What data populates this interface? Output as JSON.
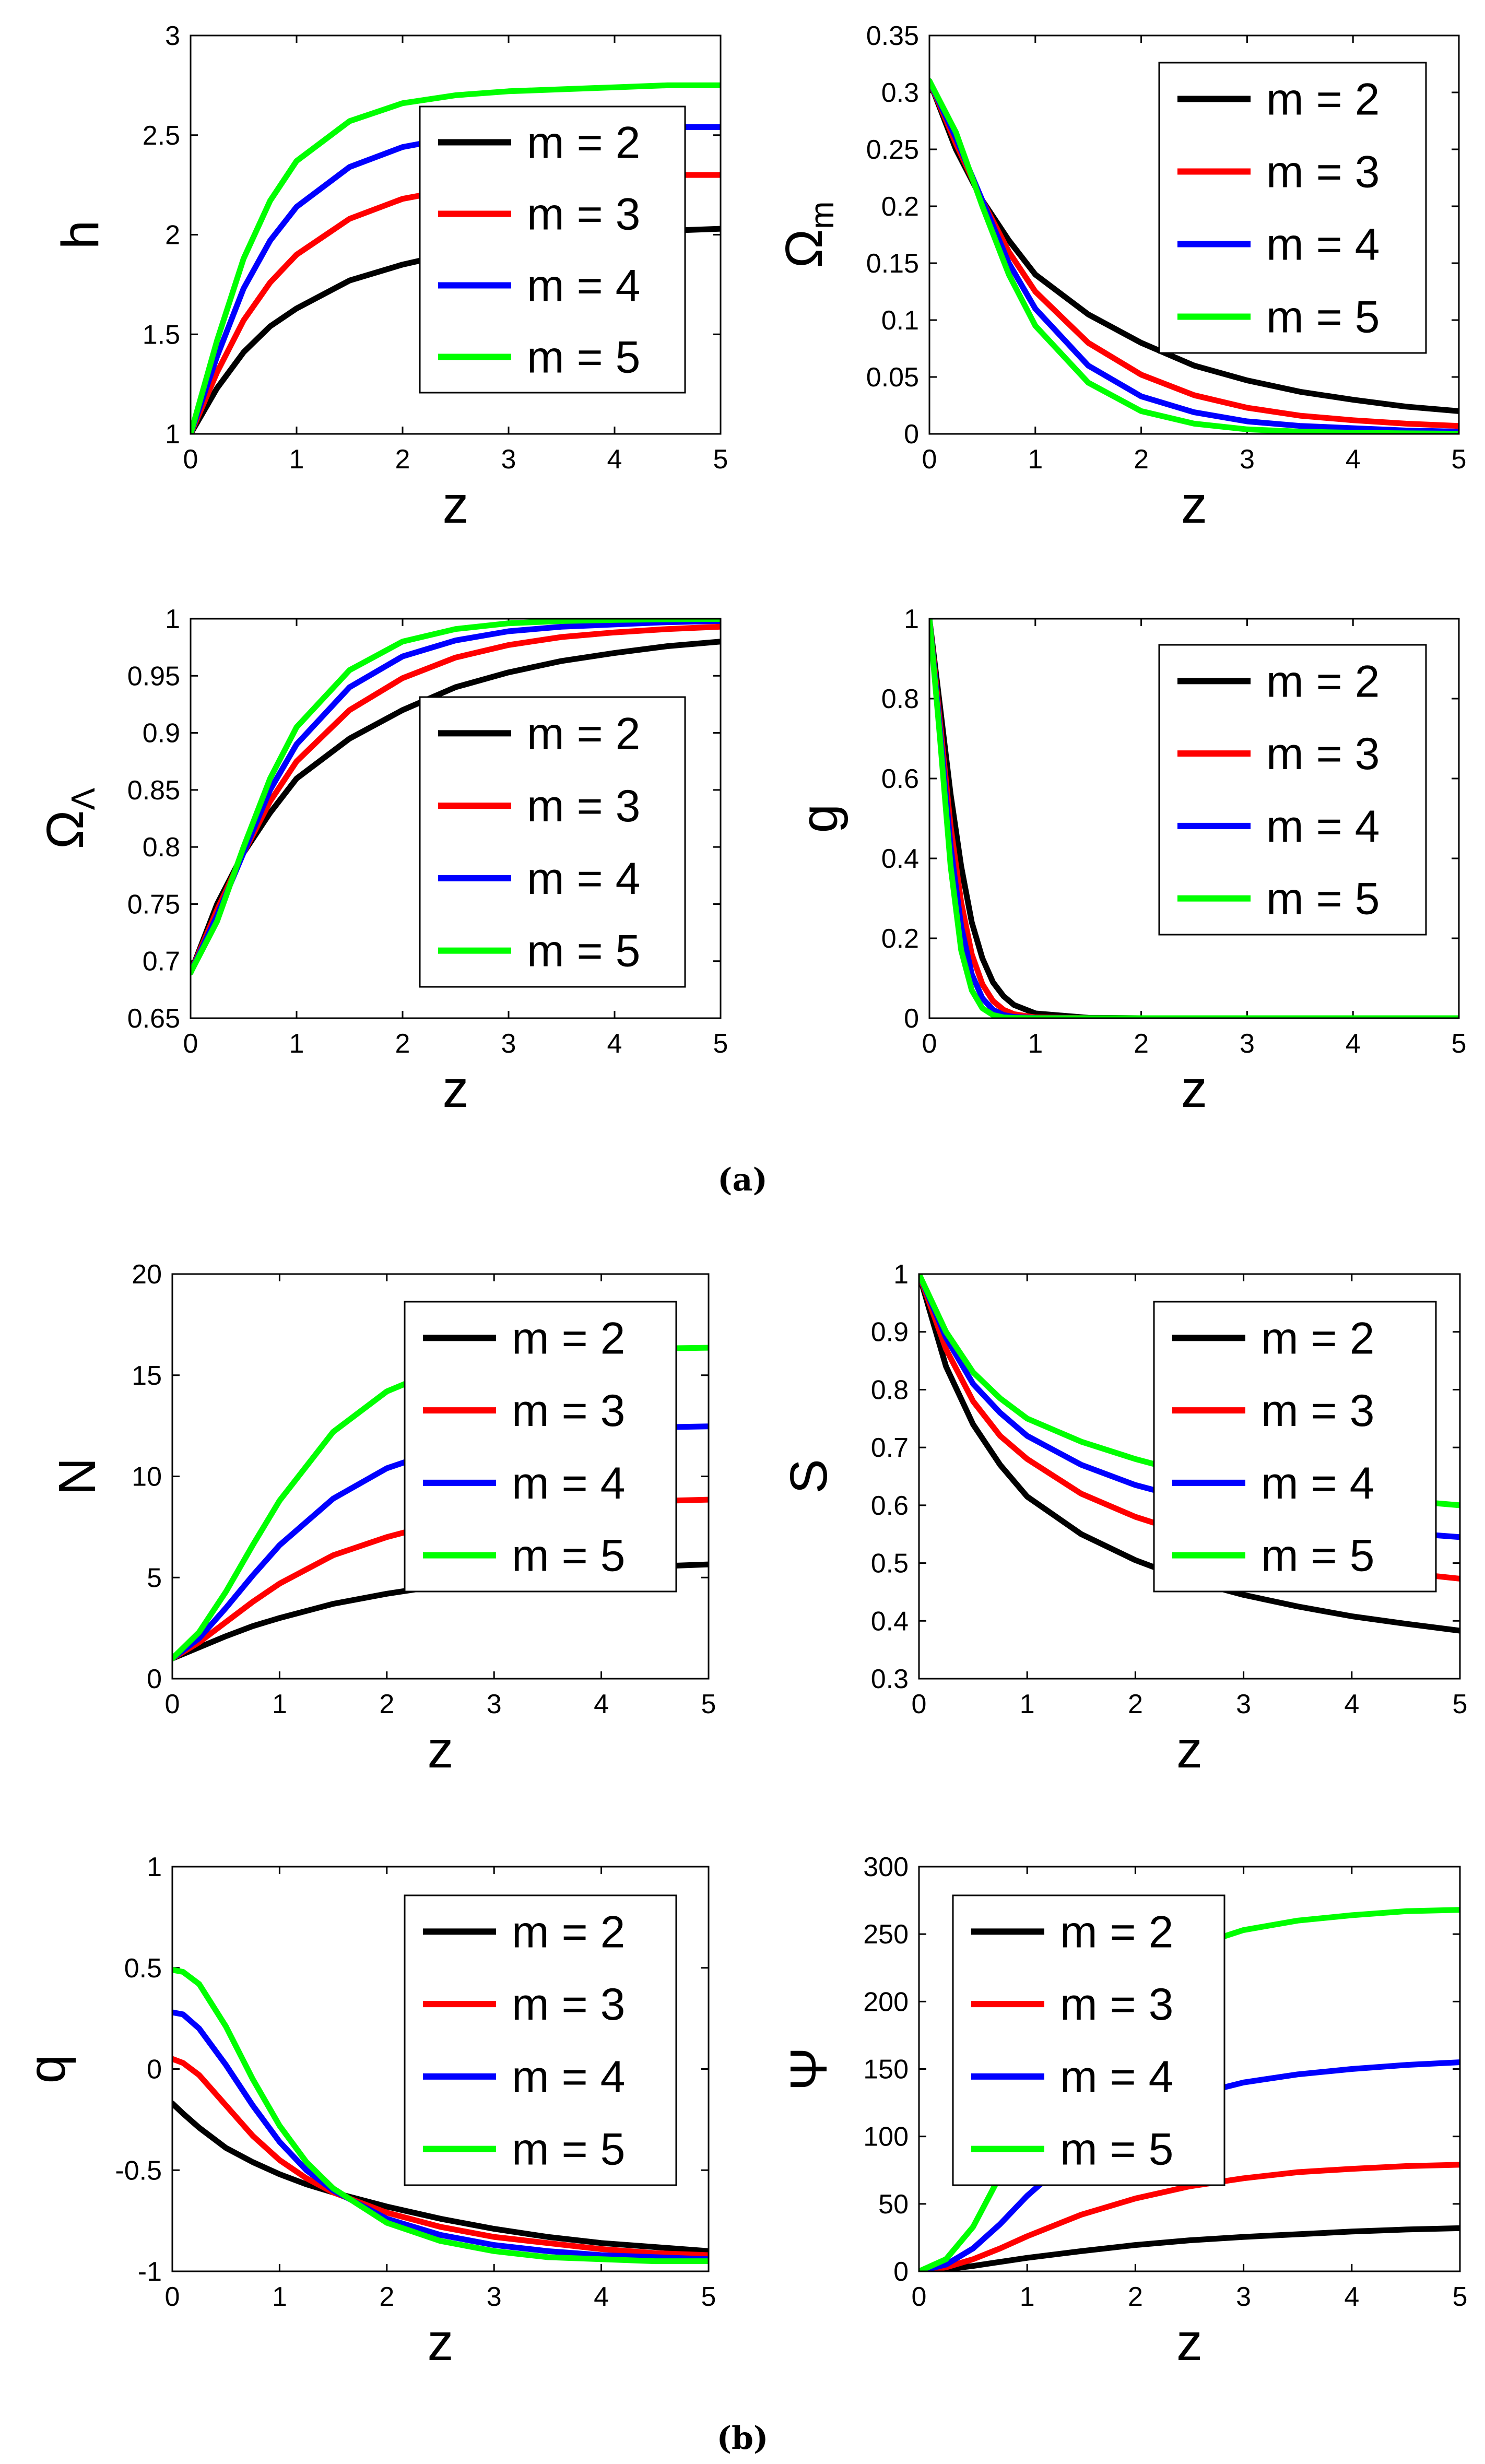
{
  "panel_captions": [
    "(a)",
    "(b)"
  ],
  "colors": {
    "m2": "#000000",
    "m3": "#ff0000",
    "m4": "#0000ff",
    "m5": "#00ff00"
  },
  "chart_data": [
    {
      "id": "h",
      "type": "line",
      "ylabel": "h",
      "ylabel_sub": "",
      "xlabel": "z",
      "xlim": [
        0,
        5
      ],
      "ylim": [
        1,
        3
      ],
      "xticks": [
        "0",
        "1",
        "2",
        "3",
        "4",
        "5"
      ],
      "yticks": [
        "1",
        "1.5",
        "2",
        "2.5",
        "3"
      ],
      "legend": {
        "entries": [
          "m = 2",
          "m = 3",
          "m = 4",
          "m = 5"
        ],
        "position": "center-right"
      },
      "x": [
        0,
        0.25,
        0.5,
        0.75,
        1,
        1.5,
        2,
        2.5,
        3,
        3.5,
        4,
        4.5,
        5
      ],
      "series": [
        {
          "name": "m = 2",
          "color": "#000000",
          "values": [
            1.0,
            1.23,
            1.41,
            1.54,
            1.63,
            1.77,
            1.85,
            1.91,
            1.95,
            1.98,
            2.0,
            2.02,
            2.03
          ]
        },
        {
          "name": "m = 3",
          "color": "#ff0000",
          "values": [
            1.0,
            1.31,
            1.57,
            1.76,
            1.9,
            2.08,
            2.18,
            2.23,
            2.26,
            2.28,
            2.29,
            2.3,
            2.3
          ]
        },
        {
          "name": "m = 4",
          "color": "#0000ff",
          "values": [
            1.0,
            1.39,
            1.73,
            1.97,
            2.14,
            2.34,
            2.44,
            2.49,
            2.52,
            2.53,
            2.54,
            2.54,
            2.54
          ]
        },
        {
          "name": "m = 5",
          "color": "#00ff00",
          "values": [
            1.0,
            1.47,
            1.88,
            2.17,
            2.37,
            2.57,
            2.66,
            2.7,
            2.72,
            2.73,
            2.74,
            2.75,
            2.75
          ]
        }
      ]
    },
    {
      "id": "omega_m",
      "type": "line",
      "ylabel": "Ω",
      "ylabel_sub": "m",
      "xlabel": "z",
      "xlim": [
        0,
        5
      ],
      "ylim": [
        0,
        0.35
      ],
      "xticks": [
        "0",
        "1",
        "2",
        "3",
        "4",
        "5"
      ],
      "yticks": [
        "0",
        "0.05",
        "0.1",
        "0.15",
        "0.2",
        "0.25",
        "0.3",
        "0.35"
      ],
      "legend": {
        "entries": [
          "m = 2",
          "m = 3",
          "m = 4",
          "m = 5"
        ],
        "position": "top-right"
      },
      "x": [
        0,
        0.25,
        0.5,
        0.75,
        1,
        1.5,
        2,
        2.5,
        3,
        3.5,
        4,
        4.5,
        5
      ],
      "series": [
        {
          "name": "m = 2",
          "color": "#000000",
          "values": [
            0.31,
            0.25,
            0.205,
            0.17,
            0.14,
            0.105,
            0.08,
            0.06,
            0.047,
            0.037,
            0.03,
            0.024,
            0.02
          ]
        },
        {
          "name": "m = 3",
          "color": "#ff0000",
          "values": [
            0.31,
            0.255,
            0.205,
            0.16,
            0.125,
            0.08,
            0.052,
            0.034,
            0.023,
            0.016,
            0.012,
            0.009,
            0.007
          ]
        },
        {
          "name": "m = 4",
          "color": "#0000ff",
          "values": [
            0.31,
            0.26,
            0.205,
            0.15,
            0.11,
            0.06,
            0.033,
            0.019,
            0.011,
            0.007,
            0.005,
            0.003,
            0.002
          ]
        },
        {
          "name": "m = 5",
          "color": "#00ff00",
          "values": [
            0.31,
            0.265,
            0.2,
            0.14,
            0.095,
            0.045,
            0.02,
            0.009,
            0.004,
            0.002,
            0.001,
            0.0005,
            0.0002
          ]
        }
      ]
    },
    {
      "id": "omega_lambda",
      "type": "line",
      "ylabel": "Ω",
      "ylabel_sub": "Λ",
      "xlabel": "z",
      "xlim": [
        0,
        5
      ],
      "ylim": [
        0.65,
        1
      ],
      "xticks": [
        "0",
        "1",
        "2",
        "3",
        "4",
        "5"
      ],
      "yticks": [
        "0.65",
        "0.7",
        "0.75",
        "0.8",
        "0.85",
        "0.9",
        "0.95",
        "1"
      ],
      "legend": {
        "entries": [
          "m = 2",
          "m = 3",
          "m = 4",
          "m = 5"
        ],
        "position": "bottom-right"
      },
      "x": [
        0,
        0.25,
        0.5,
        0.75,
        1,
        1.5,
        2,
        2.5,
        3,
        3.5,
        4,
        4.5,
        5
      ],
      "series": [
        {
          "name": "m = 2",
          "color": "#000000",
          "values": [
            0.69,
            0.75,
            0.795,
            0.83,
            0.86,
            0.895,
            0.92,
            0.94,
            0.953,
            0.963,
            0.97,
            0.976,
            0.98
          ]
        },
        {
          "name": "m = 3",
          "color": "#ff0000",
          "values": [
            0.69,
            0.745,
            0.795,
            0.84,
            0.875,
            0.92,
            0.948,
            0.966,
            0.977,
            0.984,
            0.988,
            0.991,
            0.993
          ]
        },
        {
          "name": "m = 4",
          "color": "#0000ff",
          "values": [
            0.69,
            0.74,
            0.795,
            0.85,
            0.89,
            0.94,
            0.967,
            0.981,
            0.989,
            0.993,
            0.995,
            0.997,
            0.998
          ]
        },
        {
          "name": "m = 5",
          "color": "#00ff00",
          "values": [
            0.69,
            0.735,
            0.8,
            0.86,
            0.905,
            0.955,
            0.98,
            0.991,
            0.996,
            0.998,
            0.999,
            0.9995,
            0.9998
          ]
        }
      ]
    },
    {
      "id": "g",
      "type": "line",
      "ylabel": "g",
      "ylabel_sub": "",
      "xlabel": "z",
      "xlim": [
        0,
        5
      ],
      "ylim": [
        0,
        1
      ],
      "xticks": [
        "0",
        "1",
        "2",
        "3",
        "4",
        "5"
      ],
      "yticks": [
        "0",
        "0.2",
        "0.4",
        "0.6",
        "0.8",
        "1"
      ],
      "legend": {
        "entries": [
          "m = 2",
          "m = 3",
          "m = 4",
          "m = 5"
        ],
        "position": "top-right"
      },
      "x": [
        0,
        0.1,
        0.2,
        0.3,
        0.4,
        0.5,
        0.6,
        0.7,
        0.8,
        1.0,
        1.5,
        2,
        3,
        4,
        5
      ],
      "series": [
        {
          "name": "m = 2",
          "color": "#000000",
          "values": [
            1.0,
            0.78,
            0.56,
            0.38,
            0.24,
            0.15,
            0.09,
            0.055,
            0.033,
            0.012,
            0.001,
            0,
            0,
            0,
            0
          ]
        },
        {
          "name": "m = 3",
          "color": "#ff0000",
          "values": [
            1.0,
            0.74,
            0.48,
            0.29,
            0.16,
            0.085,
            0.043,
            0.021,
            0.01,
            0.002,
            0,
            0,
            0,
            0,
            0
          ]
        },
        {
          "name": "m = 4",
          "color": "#0000ff",
          "values": [
            1.0,
            0.72,
            0.43,
            0.23,
            0.11,
            0.05,
            0.021,
            0.008,
            0.003,
            0.0005,
            0,
            0,
            0,
            0,
            0
          ]
        },
        {
          "name": "m = 5",
          "color": "#00ff00",
          "values": [
            1.0,
            0.7,
            0.38,
            0.17,
            0.07,
            0.025,
            0.008,
            0.002,
            0.0005,
            0,
            0,
            0,
            0,
            0,
            0
          ]
        }
      ]
    },
    {
      "id": "N",
      "type": "line",
      "ylabel": "N",
      "ylabel_sub": "",
      "xlabel": "z",
      "xlim": [
        0,
        5
      ],
      "ylim": [
        0,
        20
      ],
      "xticks": [
        "0",
        "1",
        "2",
        "3",
        "4",
        "5"
      ],
      "yticks": [
        "0",
        "5",
        "10",
        "15",
        "20"
      ],
      "legend": {
        "entries": [
          "m = 2",
          "m = 3",
          "m = 4",
          "m = 5"
        ],
        "position": "center-right"
      },
      "x": [
        0,
        0.25,
        0.5,
        0.75,
        1,
        1.5,
        2,
        2.5,
        3,
        3.5,
        4,
        4.5,
        5
      ],
      "series": [
        {
          "name": "m = 2",
          "color": "#000000",
          "values": [
            1.0,
            1.55,
            2.1,
            2.6,
            3.0,
            3.7,
            4.2,
            4.6,
            4.9,
            5.2,
            5.4,
            5.55,
            5.65
          ]
        },
        {
          "name": "m = 3",
          "color": "#ff0000",
          "values": [
            1.0,
            1.8,
            2.8,
            3.8,
            4.7,
            6.1,
            7.0,
            7.7,
            8.15,
            8.45,
            8.65,
            8.78,
            8.85
          ]
        },
        {
          "name": "m = 4",
          "color": "#0000ff",
          "values": [
            1.0,
            2.0,
            3.5,
            5.1,
            6.6,
            8.9,
            10.4,
            11.3,
            11.85,
            12.15,
            12.33,
            12.42,
            12.47
          ]
        },
        {
          "name": "m = 5",
          "color": "#00ff00",
          "values": [
            1.0,
            2.3,
            4.3,
            6.6,
            8.8,
            12.2,
            14.2,
            15.3,
            15.85,
            16.1,
            16.25,
            16.32,
            16.36
          ]
        }
      ]
    },
    {
      "id": "S",
      "type": "line",
      "ylabel": "S",
      "ylabel_sub": "",
      "xlabel": "z",
      "xlim": [
        0,
        5
      ],
      "ylim": [
        0.3,
        1
      ],
      "xticks": [
        "0",
        "1",
        "2",
        "3",
        "4",
        "5"
      ],
      "yticks": [
        "0.3",
        "0.4",
        "0.5",
        "0.6",
        "0.7",
        "0.8",
        "0.9",
        "1"
      ],
      "legend": {
        "entries": [
          "m = 2",
          "m = 3",
          "m = 4",
          "m = 5"
        ],
        "position": "center-right"
      },
      "x": [
        0,
        0.25,
        0.5,
        0.75,
        1,
        1.5,
        2,
        2.5,
        3,
        3.5,
        4,
        4.5,
        5
      ],
      "series": [
        {
          "name": "m = 2",
          "color": "#000000",
          "values": [
            1.0,
            0.84,
            0.74,
            0.67,
            0.615,
            0.55,
            0.505,
            0.47,
            0.445,
            0.425,
            0.408,
            0.395,
            0.383
          ]
        },
        {
          "name": "m = 3",
          "color": "#ff0000",
          "values": [
            1.0,
            0.87,
            0.78,
            0.72,
            0.68,
            0.62,
            0.58,
            0.55,
            0.53,
            0.51,
            0.495,
            0.483,
            0.473
          ]
        },
        {
          "name": "m = 4",
          "color": "#0000ff",
          "values": [
            1.0,
            0.89,
            0.81,
            0.76,
            0.72,
            0.67,
            0.635,
            0.61,
            0.59,
            0.575,
            0.562,
            0.552,
            0.545
          ]
        },
        {
          "name": "m = 5",
          "color": "#00ff00",
          "values": [
            1.0,
            0.9,
            0.83,
            0.785,
            0.75,
            0.71,
            0.68,
            0.655,
            0.64,
            0.627,
            0.617,
            0.608,
            0.6
          ]
        }
      ]
    },
    {
      "id": "q",
      "type": "line",
      "ylabel": "q",
      "ylabel_sub": "",
      "xlabel": "z",
      "xlim": [
        0,
        5
      ],
      "ylim": [
        -1,
        1
      ],
      "xticks": [
        "0",
        "1",
        "2",
        "3",
        "4",
        "5"
      ],
      "yticks": [
        "-1",
        "-0.5",
        "0",
        "0.5",
        "1"
      ],
      "legend": {
        "entries": [
          "m = 2",
          "m = 3",
          "m = 4",
          "m = 5"
        ],
        "position": "top-right"
      },
      "x": [
        0,
        0.1,
        0.25,
        0.5,
        0.75,
        1,
        1.25,
        1.5,
        2,
        2.5,
        3,
        3.5,
        4,
        4.5,
        5
      ],
      "series": [
        {
          "name": "m = 2",
          "color": "#000000",
          "values": [
            -0.17,
            -0.22,
            -0.29,
            -0.39,
            -0.46,
            -0.52,
            -0.57,
            -0.61,
            -0.68,
            -0.74,
            -0.79,
            -0.83,
            -0.86,
            -0.88,
            -0.9
          ]
        },
        {
          "name": "m = 3",
          "color": "#ff0000",
          "values": [
            0.05,
            0.03,
            -0.03,
            -0.18,
            -0.33,
            -0.45,
            -0.54,
            -0.61,
            -0.71,
            -0.78,
            -0.83,
            -0.86,
            -0.89,
            -0.91,
            -0.92
          ]
        },
        {
          "name": "m = 4",
          "color": "#0000ff",
          "values": [
            0.28,
            0.27,
            0.2,
            0.02,
            -0.18,
            -0.36,
            -0.5,
            -0.6,
            -0.74,
            -0.82,
            -0.87,
            -0.9,
            -0.92,
            -0.93,
            -0.94
          ]
        },
        {
          "name": "m = 5",
          "color": "#00ff00",
          "values": [
            0.49,
            0.48,
            0.42,
            0.21,
            -0.05,
            -0.28,
            -0.46,
            -0.59,
            -0.76,
            -0.85,
            -0.9,
            -0.93,
            -0.94,
            -0.95,
            -0.95
          ]
        }
      ]
    },
    {
      "id": "psi",
      "type": "line",
      "ylabel": "Ψ",
      "ylabel_sub": "",
      "xlabel": "z",
      "xlim": [
        0,
        5
      ],
      "ylim": [
        0,
        300
      ],
      "xticks": [
        "0",
        "1",
        "2",
        "3",
        "4",
        "5"
      ],
      "yticks": [
        "0",
        "50",
        "100",
        "150",
        "200",
        "250",
        "300"
      ],
      "legend": {
        "entries": [
          "m = 2",
          "m = 3",
          "m = 4",
          "m = 5"
        ],
        "position": "center-left"
      },
      "x": [
        0,
        0.25,
        0.5,
        0.75,
        1,
        1.5,
        2,
        2.5,
        3,
        3.5,
        4,
        4.5,
        5
      ],
      "series": [
        {
          "name": "m = 2",
          "color": "#000000",
          "values": [
            0,
            1.5,
            4,
            7,
            10,
            15,
            19.5,
            23,
            25.5,
            27.5,
            29.5,
            31,
            32
          ]
        },
        {
          "name": "m = 3",
          "color": "#ff0000",
          "values": [
            0,
            3,
            9,
            17,
            26,
            42,
            54,
            63,
            69,
            73.5,
            76,
            78,
            79
          ]
        },
        {
          "name": "m = 4",
          "color": "#0000ff",
          "values": [
            0,
            5,
            17,
            35,
            56,
            91,
            115,
            130,
            140,
            146,
            150,
            153,
            155
          ]
        },
        {
          "name": "m = 5",
          "color": "#00ff00",
          "values": [
            0,
            9,
            33,
            71,
            113,
            178,
            217,
            240,
            253,
            260,
            264,
            267,
            268
          ]
        }
      ]
    }
  ]
}
